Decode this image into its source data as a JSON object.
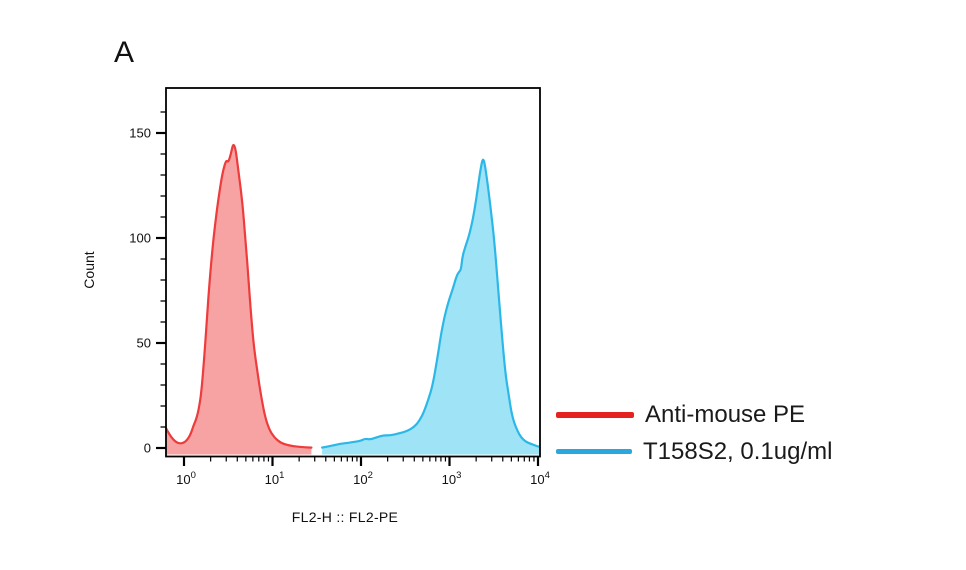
{
  "panel_label": "A",
  "chart_data": {
    "type": "area",
    "subtype": "flow-cytometry-histogram",
    "title": "",
    "xlabel": "FL2-H :: FL2-PE",
    "ylabel": "Count",
    "x_scale": "log10",
    "x_range_log10": [
      -0.21,
      4.02
    ],
    "ylim": [
      0,
      175
    ],
    "y_major_ticks": [
      0,
      50,
      100,
      150
    ],
    "y_minor_tick_step": 10,
    "y_minor_tick_max": 160,
    "x_tick_base": "10",
    "x_decade_exponents": [
      0,
      1,
      2,
      3,
      4
    ],
    "grid": false,
    "legend_position": "outside-right-bottom",
    "series": [
      {
        "name": "Anti-mouse PE",
        "stroke": "#ee3b3b",
        "fill": "#f8a3a3",
        "legend_color": "#e62220",
        "peak_x_log10": 0.555,
        "peak_count": 145,
        "points": [
          [
            -0.21,
            10
          ],
          [
            -0.16,
            6
          ],
          [
            -0.1,
            3
          ],
          [
            -0.04,
            2
          ],
          [
            0.02,
            3
          ],
          [
            0.07,
            6
          ],
          [
            0.11,
            11
          ],
          [
            0.14,
            14
          ],
          [
            0.17,
            19
          ],
          [
            0.2,
            28
          ],
          [
            0.23,
            44
          ],
          [
            0.26,
            62
          ],
          [
            0.29,
            80
          ],
          [
            0.32,
            94
          ],
          [
            0.35,
            106
          ],
          [
            0.39,
            119
          ],
          [
            0.43,
            130
          ],
          [
            0.46,
            135
          ],
          [
            0.48,
            137
          ],
          [
            0.5,
            136
          ],
          [
            0.53,
            140
          ],
          [
            0.555,
            145
          ],
          [
            0.58,
            143
          ],
          [
            0.6,
            137
          ],
          [
            0.62,
            130
          ],
          [
            0.645,
            122
          ],
          [
            0.67,
            112
          ],
          [
            0.7,
            96
          ],
          [
            0.73,
            80
          ],
          [
            0.76,
            62
          ],
          [
            0.79,
            48
          ],
          [
            0.83,
            36
          ],
          [
            0.87,
            25
          ],
          [
            0.91,
            16
          ],
          [
            0.96,
            9
          ],
          [
            1.02,
            5
          ],
          [
            1.09,
            2.5
          ],
          [
            1.18,
            1.2
          ],
          [
            1.3,
            0.5
          ],
          [
            1.44,
            0.2
          ]
        ]
      },
      {
        "name": "T158S2, 0.1ug/ml",
        "stroke": "#2bb8e8",
        "fill": "#9fe3f6",
        "legend_color": "#29a8e0",
        "peak_x_log10": 3.38,
        "peak_count": 138,
        "points": [
          [
            1.56,
            0.2
          ],
          [
            1.66,
            1
          ],
          [
            1.76,
            2
          ],
          [
            1.86,
            2.5
          ],
          [
            1.94,
            3
          ],
          [
            2.0,
            3.5
          ],
          [
            2.05,
            4.5
          ],
          [
            2.1,
            4
          ],
          [
            2.17,
            5
          ],
          [
            2.25,
            6
          ],
          [
            2.33,
            6
          ],
          [
            2.43,
            7
          ],
          [
            2.52,
            8
          ],
          [
            2.6,
            10
          ],
          [
            2.66,
            13
          ],
          [
            2.71,
            17
          ],
          [
            2.76,
            23
          ],
          [
            2.81,
            30
          ],
          [
            2.86,
            42
          ],
          [
            2.9,
            53
          ],
          [
            2.94,
            62
          ],
          [
            2.99,
            70
          ],
          [
            3.04,
            76
          ],
          [
            3.08,
            82
          ],
          [
            3.11,
            84
          ],
          [
            3.13,
            85
          ],
          [
            3.145,
            91
          ],
          [
            3.18,
            96
          ],
          [
            3.22,
            101
          ],
          [
            3.26,
            108
          ],
          [
            3.3,
            118
          ],
          [
            3.33,
            127
          ],
          [
            3.36,
            135
          ],
          [
            3.38,
            138
          ],
          [
            3.4,
            135
          ],
          [
            3.43,
            126
          ],
          [
            3.46,
            116
          ],
          [
            3.49,
            105
          ],
          [
            3.52,
            92
          ],
          [
            3.55,
            76
          ],
          [
            3.58,
            60
          ],
          [
            3.61,
            45
          ],
          [
            3.64,
            33
          ],
          [
            3.67,
            25
          ],
          [
            3.7,
            17
          ],
          [
            3.73,
            12
          ],
          [
            3.77,
            8
          ],
          [
            3.81,
            5
          ],
          [
            3.86,
            3
          ],
          [
            3.92,
            2
          ],
          [
            3.98,
            1
          ],
          [
            4.02,
            0.5
          ]
        ]
      }
    ]
  },
  "legend": {
    "items": [
      {
        "label": "Anti-mouse PE",
        "color": "#e62220"
      },
      {
        "label": "T158S2, 0.1ug/ml",
        "color": "#29a8e0"
      }
    ]
  },
  "colors": {
    "axis": "#000000",
    "text": "#111111",
    "background": "#ffffff"
  }
}
